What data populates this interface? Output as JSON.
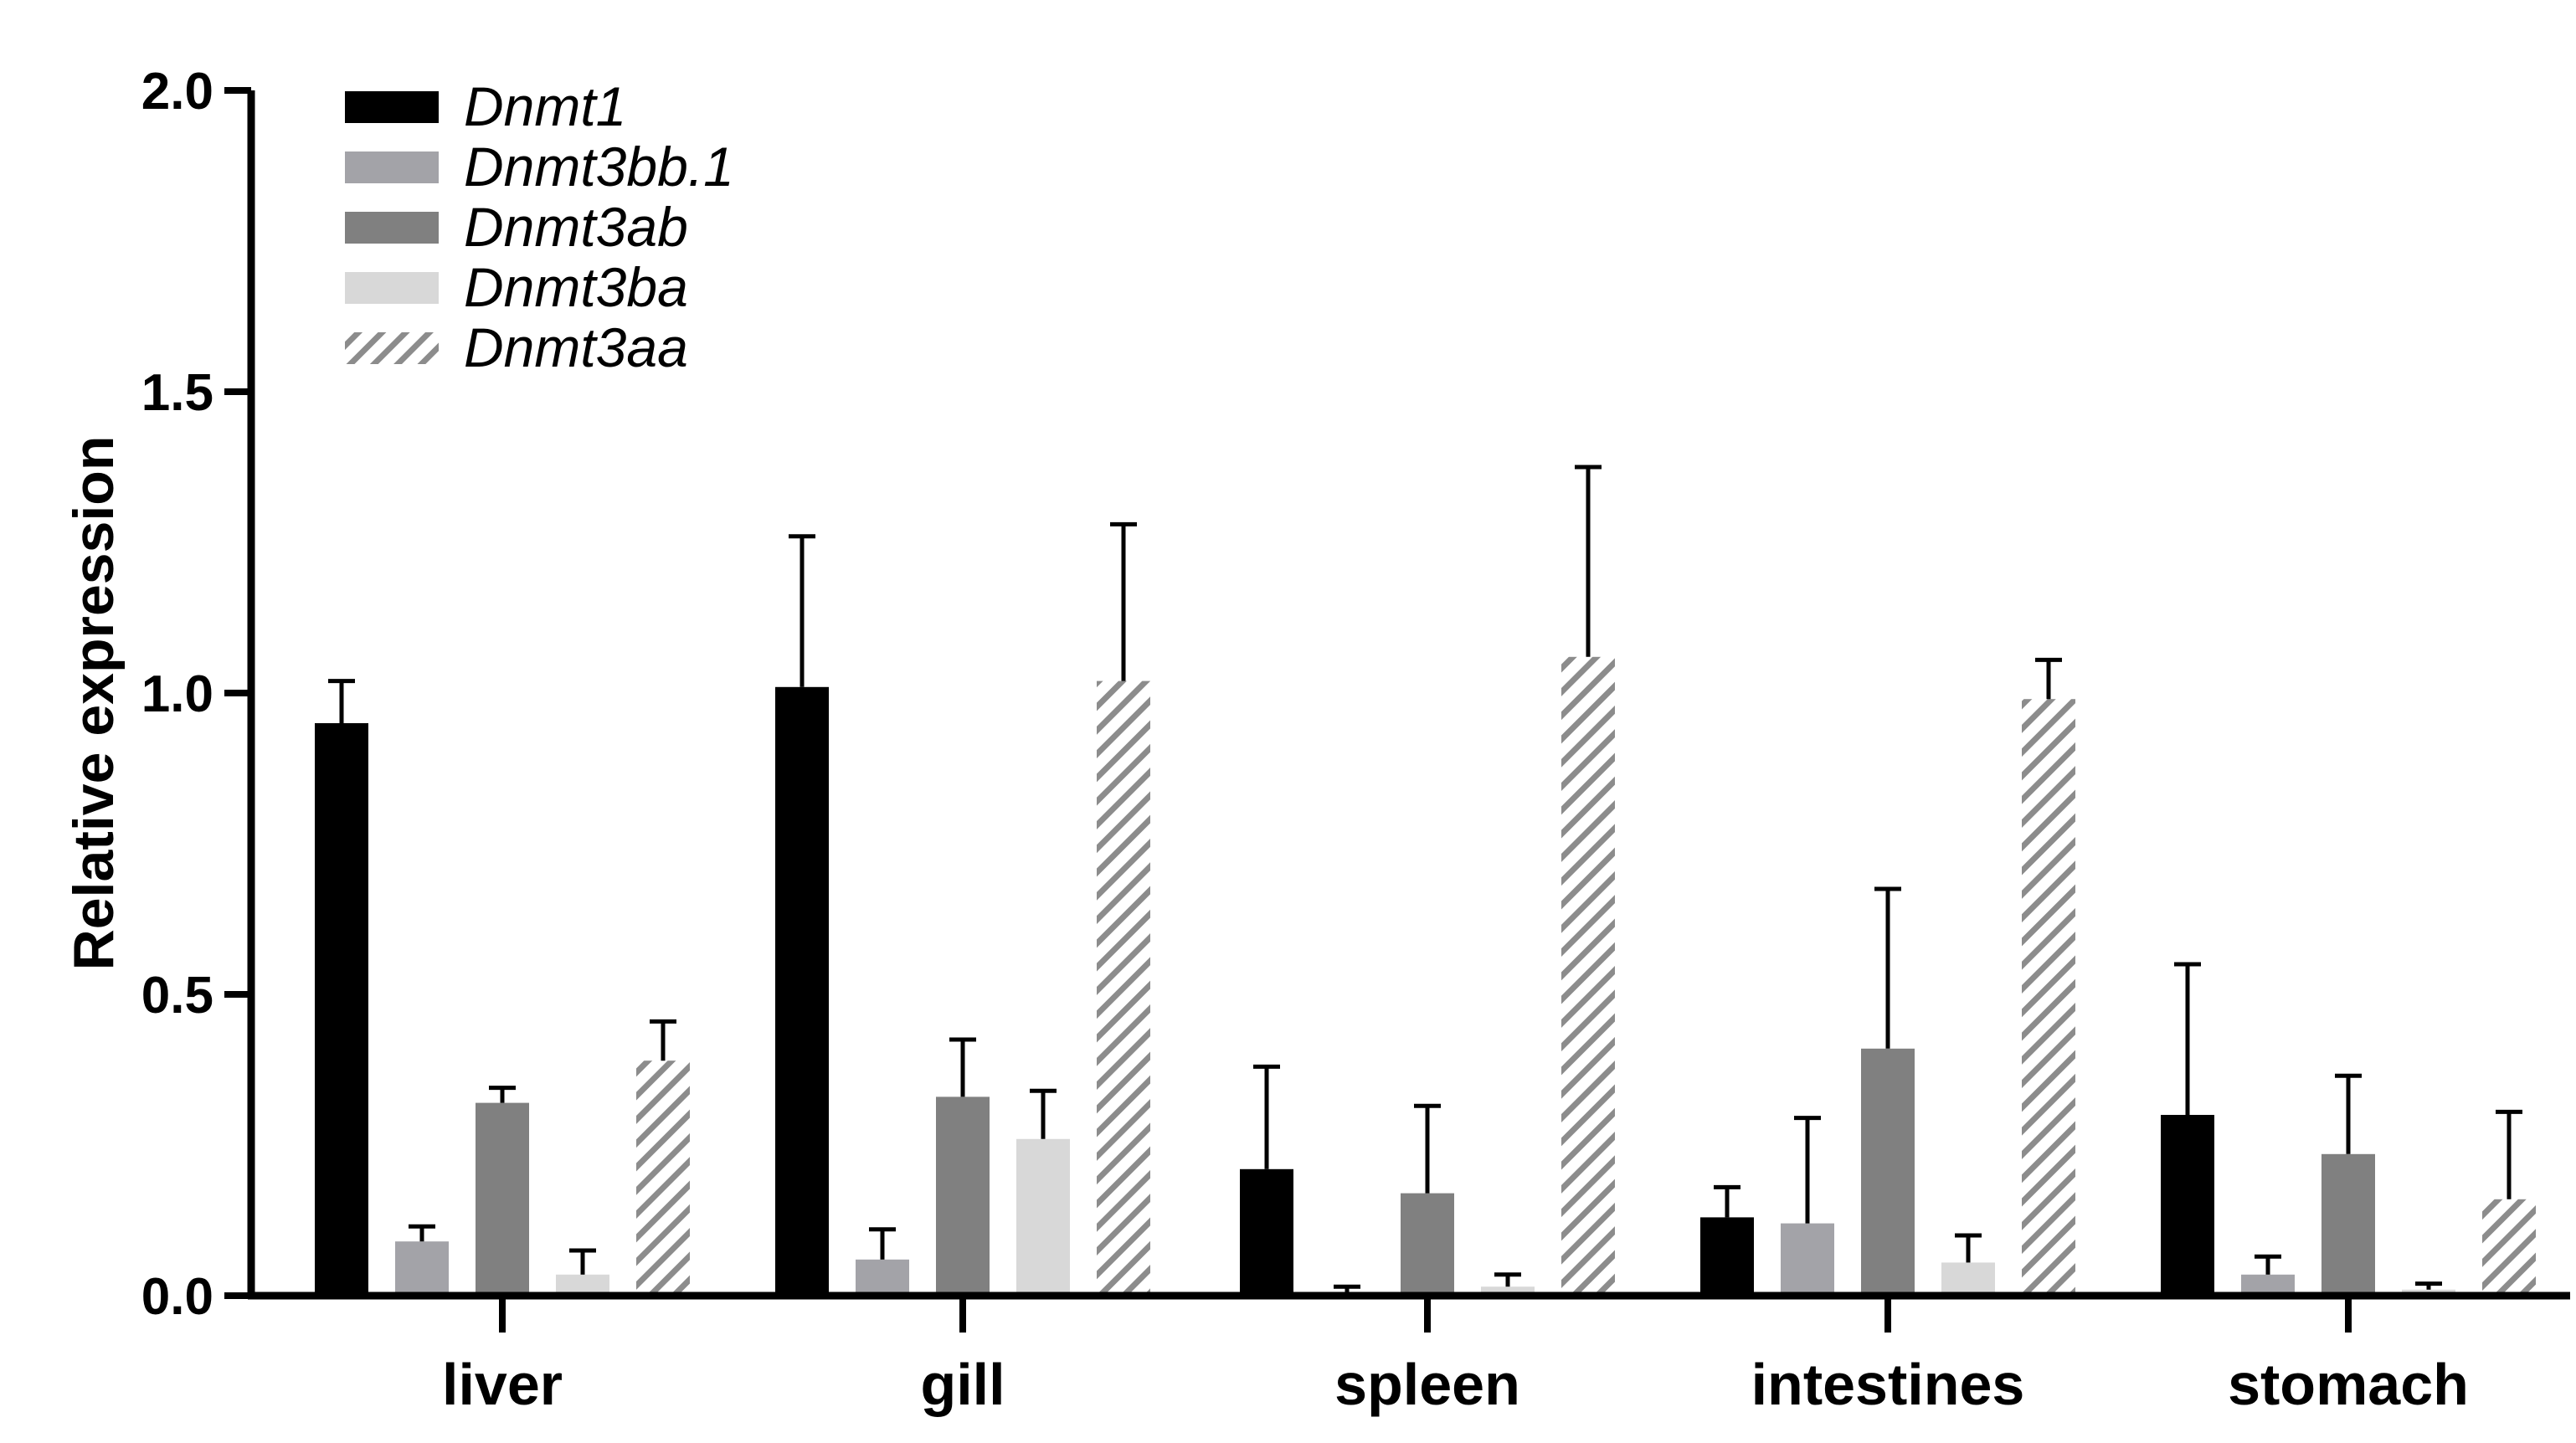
{
  "chart_data": {
    "type": "bar",
    "title": "",
    "xlabel": "",
    "ylabel": "Relative expression",
    "ylim": [
      0,
      2.0
    ],
    "yticks": [
      "0.0",
      "0.5",
      "1.0",
      "1.5",
      "2.0"
    ],
    "categories": [
      "liver",
      "gill",
      "spleen",
      "intestines",
      "stomach"
    ],
    "legend_position": "top-left",
    "series": [
      {
        "name": "Dnmt1",
        "color": "#000000",
        "pattern": "solid",
        "values": [
          0.95,
          1.01,
          0.21,
          0.13,
          0.3
        ],
        "errors": [
          0.07,
          0.25,
          0.17,
          0.05,
          0.25
        ]
      },
      {
        "name": "Dnmt3bb.1",
        "color": "#a3a3a8",
        "pattern": "solid",
        "values": [
          0.09,
          0.06,
          0.005,
          0.12,
          0.035
        ],
        "errors": [
          0.025,
          0.05,
          0.01,
          0.175,
          0.03
        ]
      },
      {
        "name": "Dnmt3ab",
        "color": "#808080",
        "pattern": "solid",
        "values": [
          0.32,
          0.33,
          0.17,
          0.41,
          0.235
        ],
        "errors": [
          0.025,
          0.095,
          0.145,
          0.265,
          0.13
        ]
      },
      {
        "name": "Dnmt3ba",
        "color": "#d8d8d8",
        "pattern": "solid",
        "values": [
          0.035,
          0.26,
          0.015,
          0.055,
          0.01
        ],
        "errors": [
          0.04,
          0.08,
          0.02,
          0.045,
          0.01
        ]
      },
      {
        "name": "Dnmt3aa",
        "color": "#8c8c8c",
        "pattern": "hatched",
        "values": [
          0.39,
          1.02,
          1.06,
          0.99,
          0.16
        ],
        "errors": [
          0.065,
          0.26,
          0.315,
          0.065,
          0.145
        ]
      }
    ]
  }
}
